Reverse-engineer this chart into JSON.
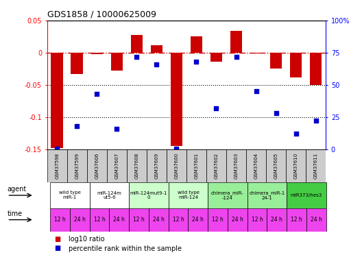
{
  "title": "GDS1858 / 10000625009",
  "samples": [
    "GSM37598",
    "GSM37599",
    "GSM37606",
    "GSM37607",
    "GSM37608",
    "GSM37609",
    "GSM37600",
    "GSM37601",
    "GSM37602",
    "GSM37603",
    "GSM37604",
    "GSM37605",
    "GSM37610",
    "GSM37611"
  ],
  "log10_ratio": [
    -0.148,
    -0.033,
    -0.002,
    -0.028,
    0.028,
    0.012,
    -0.145,
    0.026,
    -0.014,
    0.034,
    -0.001,
    -0.025,
    -0.038,
    -0.05
  ],
  "percentile_rank": [
    0.5,
    18,
    43,
    16,
    72,
    66,
    0.5,
    68,
    32,
    72,
    45,
    28,
    12,
    22
  ],
  "ylim_left": [
    -0.15,
    0.05
  ],
  "ylim_right": [
    0,
    100
  ],
  "yticks_left": [
    -0.15,
    -0.1,
    -0.05,
    0,
    0.05
  ],
  "yticks_right": [
    0,
    25,
    50,
    75,
    100
  ],
  "ytick_labels_left": [
    "-0.15",
    "-0.1",
    "-0.05",
    "0",
    "0.05"
  ],
  "ytick_labels_right": [
    "0",
    "25",
    "50",
    "75",
    "100%"
  ],
  "agent_groups": [
    {
      "label": "wild type\nmiR-1",
      "color": "#ffffff",
      "cols": [
        0,
        1
      ]
    },
    {
      "label": "miR-124m\nut5-6",
      "color": "#ffffff",
      "cols": [
        2,
        3
      ]
    },
    {
      "label": "miR-124mut9-1\n0",
      "color": "#ccffcc",
      "cols": [
        4,
        5
      ]
    },
    {
      "label": "wild type\nmiR-124",
      "color": "#ccffcc",
      "cols": [
        6,
        7
      ]
    },
    {
      "label": "chimera_miR-\n-124",
      "color": "#99ee99",
      "cols": [
        8,
        9
      ]
    },
    {
      "label": "chimera_miR-1\n24-1",
      "color": "#99ee99",
      "cols": [
        10,
        11
      ]
    },
    {
      "label": "miR373/hes3",
      "color": "#44cc44",
      "cols": [
        12,
        13
      ]
    }
  ],
  "time_labels": [
    "12 h",
    "24 h",
    "12 h",
    "24 h",
    "12 h",
    "24 h",
    "12 h",
    "24 h",
    "12 h",
    "24 h",
    "12 h",
    "24 h",
    "12 h",
    "24 h"
  ],
  "time_color": "#ee44ee",
  "sample_bg": "#cccccc",
  "bar_color": "#cc0000",
  "dot_color": "#0000cc",
  "hline_color": "#cc0000",
  "dotline1": -0.05,
  "dotline2": -0.1,
  "background_color": "#ffffff"
}
